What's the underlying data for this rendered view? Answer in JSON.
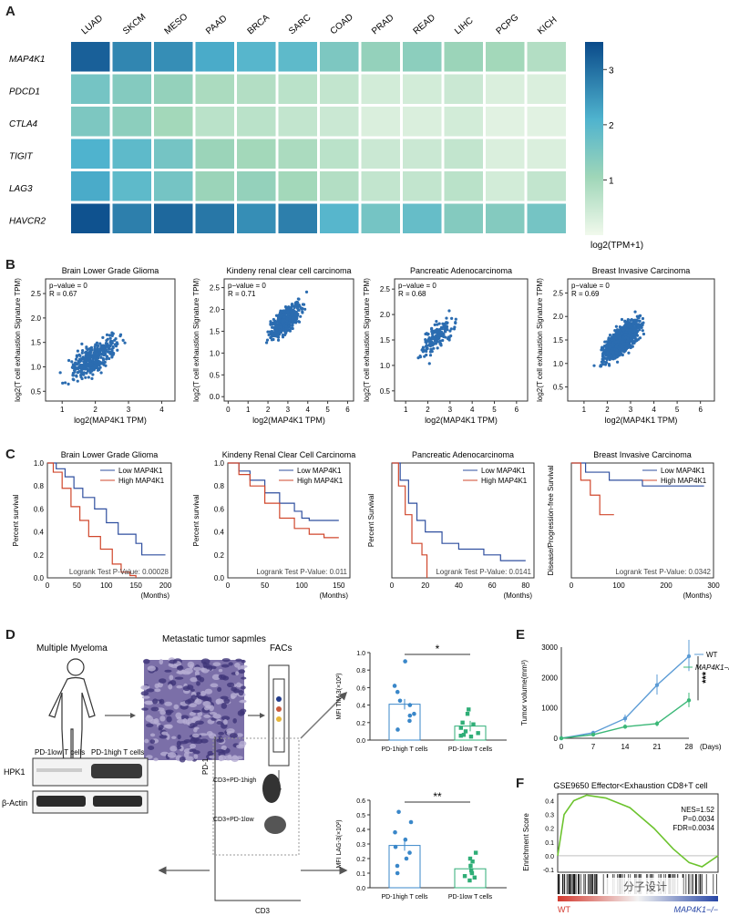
{
  "panels": {
    "a": "A",
    "b": "B",
    "c": "C",
    "d": "D",
    "e": "E",
    "f": "F"
  },
  "heatmap": {
    "columns": [
      "LUAD",
      "SKCM",
      "MESO",
      "PAAD",
      "BRCA",
      "SARC",
      "COAD",
      "PRAD",
      "READ",
      "LIHC",
      "PCPG",
      "KICH"
    ],
    "rows": [
      "MAP4K1",
      "PDCD1",
      "CTLA4",
      "TIGIT",
      "LAG3",
      "HAVCR2"
    ],
    "values": [
      [
        3.2,
        2.7,
        2.6,
        2.2,
        2.0,
        1.9,
        1.5,
        1.2,
        1.3,
        1.1,
        1.0,
        0.8
      ],
      [
        1.6,
        1.4,
        1.2,
        0.9,
        0.8,
        0.7,
        0.6,
        0.4,
        0.4,
        0.5,
        0.3,
        0.3
      ],
      [
        1.5,
        1.3,
        1.0,
        0.7,
        0.7,
        0.6,
        0.5,
        0.3,
        0.3,
        0.4,
        0.2,
        0.2
      ],
      [
        2.1,
        1.9,
        1.6,
        1.1,
        1.0,
        0.9,
        0.7,
        0.5,
        0.5,
        0.6,
        0.3,
        0.3
      ],
      [
        2.2,
        1.9,
        1.6,
        1.1,
        1.2,
        1.0,
        0.8,
        0.6,
        0.6,
        0.7,
        0.4,
        0.6
      ],
      [
        3.4,
        2.8,
        3.1,
        2.9,
        2.6,
        2.8,
        2.0,
        1.6,
        1.8,
        1.4,
        1.4,
        1.6
      ]
    ],
    "legend_ticks": [
      "3",
      "2",
      "1"
    ],
    "legend_label": "log2(TPM+1)"
  },
  "scatter": [
    {
      "title": "Brain Lower Grade Glioma",
      "p": "p−value = 0",
      "r": "R = 0.67",
      "xticks": [
        "1",
        "2",
        "3",
        "4"
      ],
      "yticks": [
        "0.5",
        "1.0",
        "1.5",
        "2.0",
        "2.5"
      ],
      "xlabel": "log2(MAP4K1 TPM)",
      "ylabel": "log2(T cell exhaustion Signature TPM)"
    },
    {
      "title": "Kindeny renal clear cell carcinoma",
      "p": "p−value = 0",
      "r": "R = 0.71",
      "xticks": [
        "0",
        "1",
        "2",
        "3",
        "4",
        "5",
        "6"
      ],
      "yticks": [
        "0.0",
        "0.5",
        "1.0",
        "1.5",
        "2.0",
        "2.5"
      ],
      "xlabel": "log2(MAP4K1 TPM)",
      "ylabel": "log2(T cell exhaustion Signature TPM)"
    },
    {
      "title": "Pancreatic Adenocarcinoma",
      "p": "p−value = 0",
      "r": "R = 0.68",
      "xticks": [
        "1",
        "2",
        "3",
        "4",
        "5",
        "6"
      ],
      "yticks": [
        "0.5",
        "1.0",
        "1.5",
        "2.0",
        "2.5"
      ],
      "xlabel": "log2(MAP4K1 TPM)",
      "ylabel": "log2(T cell exhaustion Signature TPM)"
    },
    {
      "title": "Breast Invasive Carcinoma",
      "p": "p−value = 0",
      "r": "R = 0.69",
      "xticks": [
        "1",
        "2",
        "3",
        "4",
        "5",
        "6"
      ],
      "yticks": [
        "0.5",
        "1.0",
        "1.5",
        "2.0",
        "2.5"
      ],
      "xlabel": "log2(MAP4K1 TPM)",
      "ylabel": "log2(T cell exhaustion Signature TPM)"
    }
  ],
  "survival": [
    {
      "title": "Brain Lower Grade Glioma",
      "ylabel": "Percent survival",
      "yticks": [
        "0.0",
        "0.2",
        "0.4",
        "0.6",
        "0.8",
        "1.0"
      ],
      "xticks": [
        "0",
        "50",
        "100",
        "150",
        "200"
      ],
      "xunit": "(Months)",
      "logrank": "Logrank Test P-Value: 0.00028",
      "legend": [
        "Low MAP4K1",
        "High MAP4K1"
      ]
    },
    {
      "title": "Kindeny Renal Clear Cell Carcinoma",
      "ylabel": "Percent survival",
      "yticks": [
        "0.0",
        "0.2",
        "0.4",
        "0.6",
        "0.8",
        "1.0"
      ],
      "xticks": [
        "0",
        "50",
        "100",
        "150"
      ],
      "xunit": "(Months)",
      "logrank": "Logrank Test P-Value: 0.011",
      "legend": [
        "Low MAP4K1",
        "High MAP4K1"
      ]
    },
    {
      "title": "Pancreatic Adenocarcinoma",
      "ylabel": "Percent Survival",
      "yticks": [],
      "xticks": [
        "0",
        "20",
        "40",
        "60",
        "80"
      ],
      "xunit": "(Months)",
      "logrank": "Logrank Test P-Value: 0.0141",
      "legend": [
        "Low MAP4K1",
        "High MAP4K1"
      ]
    },
    {
      "title": "Breast Invasive Carcinoma",
      "ylabel": "Disease/Progression-free Survival",
      "yticks": [],
      "xticks": [
        "0",
        "100",
        "200",
        "300"
      ],
      "xunit": "(Months)",
      "logrank": "Logrank Test P-Value: 0.0342",
      "legend": [
        "Low MAP4K1",
        "High MAP4K1"
      ]
    }
  ],
  "panel_d": {
    "myeloma": "Multiple Myeloma",
    "tumor": "Metastatic tumor sapmles",
    "facs": "FACs",
    "western_low": "PD-1low T cells",
    "western_high": "PD-1high T cells",
    "hpk1": "HPK1",
    "actin": "β-Actin",
    "flow_high": "CD3+PD-1high",
    "flow_low": "CD3+PD-1low",
    "flow_y": "PD-1",
    "flow_x": "CD3",
    "bar1": {
      "ylabel": "MFI TIM-3(×10²)",
      "yticks": [
        "0.0",
        "0.2",
        "0.4",
        "0.6",
        "0.8",
        "1.0"
      ],
      "sig": "*",
      "labels": [
        "PD-1high T cells",
        "PD-1low T cells"
      ],
      "means": [
        0.41,
        0.16
      ]
    },
    "bar2": {
      "ylabel": "MFI LAG-3(×10²)",
      "yticks": [
        "0.0",
        "0.1",
        "0.2",
        "0.3",
        "0.4",
        "0.5",
        "0.6"
      ],
      "sig": "**",
      "labels": [
        "PD-1high T cells",
        "PD-1low T cells"
      ],
      "means": [
        0.29,
        0.13
      ]
    }
  },
  "panel_e": {
    "ylabel": "Tumor volume(mm³)",
    "xticks": [
      "0",
      "7",
      "14",
      "21",
      "28"
    ],
    "xunit": "(Days)",
    "yticks": [
      "0",
      "1000",
      "2000",
      "3000"
    ],
    "legend": [
      "WT",
      "MAP4K1−/−"
    ],
    "sig": "***",
    "colors": {
      "wt": "#5b9bd5",
      "ko": "#3cb878"
    },
    "chart_data": {
      "type": "line",
      "x": [
        0,
        7,
        14,
        21,
        28
      ],
      "series": [
        {
          "name": "WT",
          "values": [
            0,
            180,
            650,
            1750,
            2700
          ]
        },
        {
          "name": "MAP4K1−/−",
          "values": [
            0,
            120,
            380,
            480,
            1250
          ]
        }
      ]
    }
  },
  "panel_f": {
    "title": "GSE9650 Effector<Exhaustion CD8+T cell",
    "ylabel": "Enrichment Score",
    "yticks": [
      "0.4",
      "0.3",
      "0.2",
      "0.1",
      "0.0",
      "-0.1"
    ],
    "nes": "NES=1.52",
    "p": "P=0.0034",
    "fdr": "FDR=0.0034",
    "left": "WT",
    "right": "MAP4K1−/−",
    "watermark": "分子设计"
  }
}
